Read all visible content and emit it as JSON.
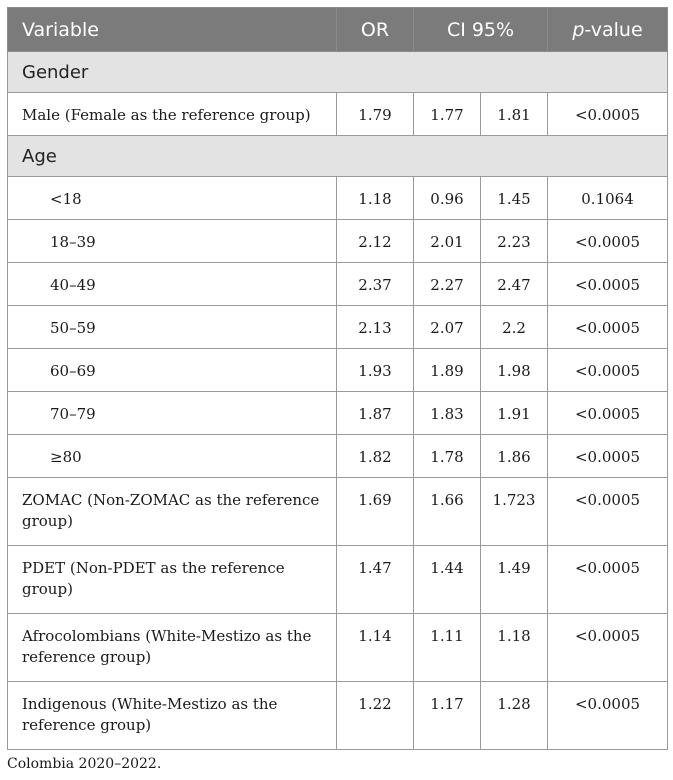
{
  "table": {
    "headers": {
      "variable": "Variable",
      "or": "OR",
      "ci": "CI 95%",
      "p_prefix": "p",
      "p_suffix": "-value"
    },
    "sections": {
      "gender": "Gender",
      "age": "Age"
    },
    "rows": [
      {
        "label": "Male (Female as the reference group)",
        "or": "1.79",
        "ci_low": "1.77",
        "ci_high": "1.81",
        "p": "<0.0005"
      },
      {
        "label": "<18",
        "or": "1.18",
        "ci_low": "0.96",
        "ci_high": "1.45",
        "p": "0.1064"
      },
      {
        "label": "18–39",
        "or": "2.12",
        "ci_low": "2.01",
        "ci_high": "2.23",
        "p": "<0.0005"
      },
      {
        "label": "40–49",
        "or": "2.37",
        "ci_low": "2.27",
        "ci_high": "2.47",
        "p": "<0.0005"
      },
      {
        "label": "50–59",
        "or": "2.13",
        "ci_low": "2.07",
        "ci_high": "2.2",
        "p": "<0.0005"
      },
      {
        "label": "60–69",
        "or": "1.93",
        "ci_low": "1.89",
        "ci_high": "1.98",
        "p": "<0.0005"
      },
      {
        "label": "70–79",
        "or": "1.87",
        "ci_low": "1.83",
        "ci_high": "1.91",
        "p": "<0.0005"
      },
      {
        "label": "≥80",
        "or": "1.82",
        "ci_low": "1.78",
        "ci_high": "1.86",
        "p": "<0.0005"
      },
      {
        "label": "ZOMAC (Non-ZOMAC as the reference group)",
        "or": "1.69",
        "ci_low": "1.66",
        "ci_high": "1.723",
        "p": "<0.0005"
      },
      {
        "label": "PDET (Non-PDET as the reference group)",
        "or": "1.47",
        "ci_low": "1.44",
        "ci_high": "1.49",
        "p": "<0.0005"
      },
      {
        "label": "Afrocolombians (White-Mestizo as the reference group)",
        "or": "1.14",
        "ci_low": "1.11",
        "ci_high": "1.18",
        "p": "<0.0005"
      },
      {
        "label": "Indigenous (White-Mestizo as the reference group)",
        "or": "1.22",
        "ci_low": "1.17",
        "ci_high": "1.28",
        "p": "<0.0005"
      }
    ]
  },
  "footnote": "Colombia 2020–2022."
}
